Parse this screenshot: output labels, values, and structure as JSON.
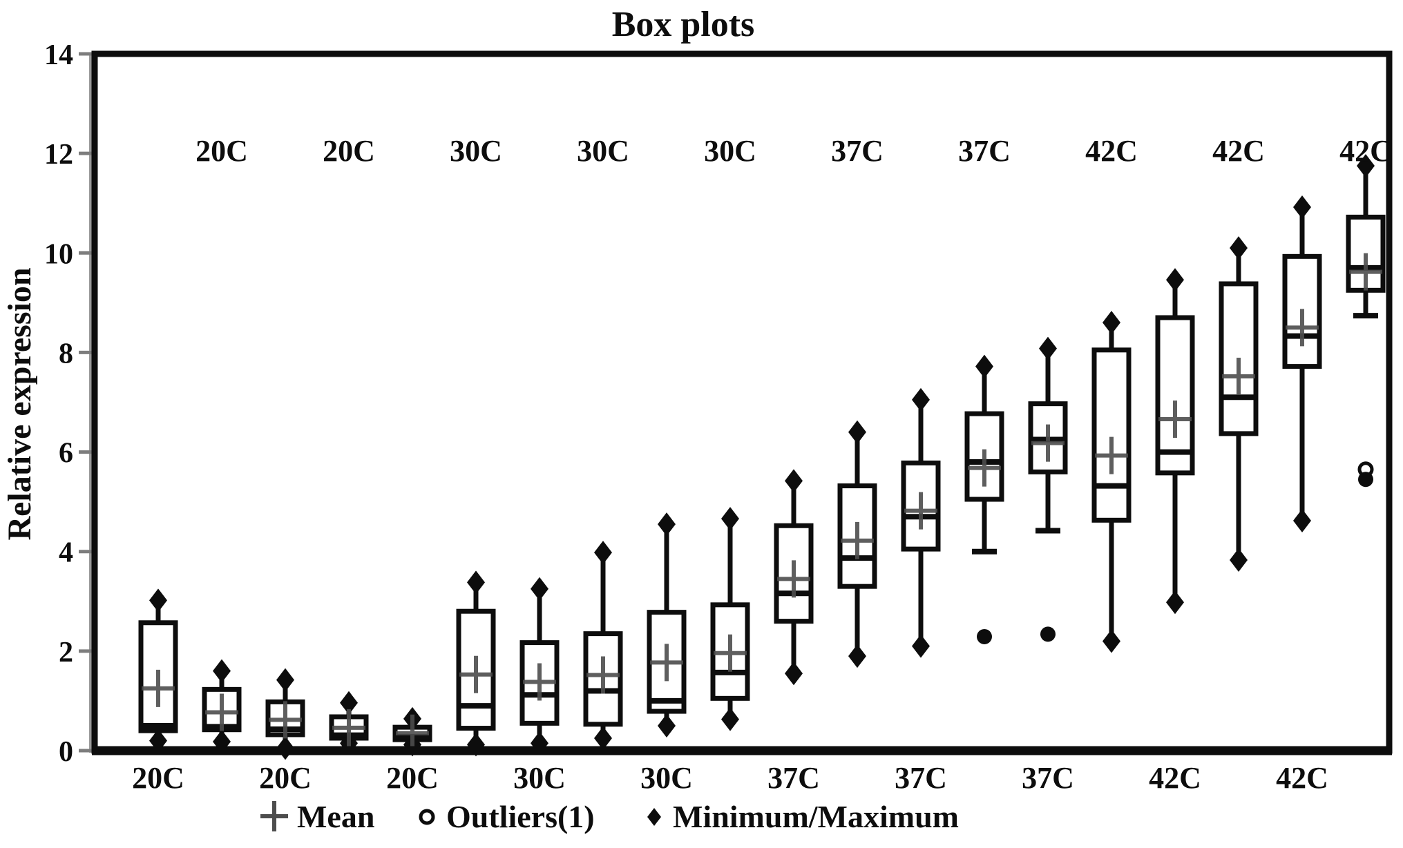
{
  "title": "Box plots",
  "y_axis": {
    "label": "Relative expression",
    "ticks": [
      0,
      2,
      4,
      6,
      8,
      10,
      12,
      14
    ],
    "min": 0,
    "max": 14
  },
  "legend": {
    "mean_label": "Mean",
    "outliers_label": "Outliers(1)",
    "minmax_label": "Minimum/Maximum"
  },
  "colors": {
    "box_stroke": "#0d0d0d",
    "mean_plus": "#4d4d4d",
    "tick_gray": "#7d7d7d",
    "background": "#ffffff"
  },
  "chart_data": {
    "type": "boxplot",
    "title": "Box plots",
    "ylabel": "Relative expression",
    "ylim": [
      0,
      14
    ],
    "grid": false,
    "legend_position": "bottom",
    "groups": [
      "20C",
      "30C",
      "37C",
      "42C"
    ],
    "boxes": [
      {
        "label": "20C",
        "label_position": "bottom",
        "whisker_low": 0.2,
        "lower_marker": "diamond",
        "q1": 0.4,
        "median": 0.5,
        "mean": 1.25,
        "q3": 2.57,
        "max": 3.02,
        "outliers": []
      },
      {
        "label": "20C",
        "label_position": "top",
        "whisker_low": 0.18,
        "lower_marker": "diamond",
        "q1": 0.42,
        "median": 0.48,
        "mean": 0.77,
        "q3": 1.23,
        "max": 1.6,
        "outliers": []
      },
      {
        "label": "20C",
        "label_position": "bottom",
        "whisker_low": 0.05,
        "lower_marker": "diamond",
        "q1": 0.32,
        "median": 0.43,
        "mean": 0.62,
        "q3": 0.98,
        "max": 1.42,
        "outliers": []
      },
      {
        "label": "20C",
        "label_position": "top",
        "whisker_low": 0.15,
        "lower_marker": "diamond",
        "q1": 0.25,
        "median": 0.31,
        "mean": 0.46,
        "q3": 0.68,
        "max": 0.96,
        "outliers": []
      },
      {
        "label": "20C",
        "label_position": "bottom",
        "whisker_low": 0.12,
        "lower_marker": "diamond",
        "q1": 0.22,
        "median": 0.28,
        "mean": 0.35,
        "q3": 0.47,
        "max": 0.64,
        "outliers": []
      },
      {
        "label": "30C",
        "label_position": "top",
        "whisker_low": 0.12,
        "lower_marker": "diamond",
        "q1": 0.45,
        "median": 0.9,
        "mean": 1.53,
        "q3": 2.8,
        "max": 3.38,
        "outliers": []
      },
      {
        "label": "30C",
        "label_position": "bottom",
        "whisker_low": 0.15,
        "lower_marker": "diamond",
        "q1": 0.55,
        "median": 1.12,
        "mean": 1.38,
        "q3": 2.17,
        "max": 3.25,
        "outliers": []
      },
      {
        "label": "30C",
        "label_position": "top",
        "whisker_low": 0.25,
        "lower_marker": "diamond",
        "q1": 0.53,
        "median": 1.2,
        "mean": 1.52,
        "q3": 2.35,
        "max": 3.98,
        "outliers": []
      },
      {
        "label": "30C",
        "label_position": "bottom",
        "whisker_low": 0.5,
        "lower_marker": "diamond",
        "q1": 0.79,
        "median": 1.0,
        "mean": 1.77,
        "q3": 2.78,
        "max": 4.55,
        "outliers": []
      },
      {
        "label": "30C",
        "label_position": "top",
        "whisker_low": 0.63,
        "lower_marker": "diamond",
        "q1": 1.05,
        "median": 1.57,
        "mean": 1.96,
        "q3": 2.93,
        "max": 4.66,
        "outliers": []
      },
      {
        "label": "37C",
        "label_position": "bottom",
        "whisker_low": 1.55,
        "lower_marker": "diamond",
        "q1": 2.6,
        "median": 3.16,
        "mean": 3.45,
        "q3": 4.52,
        "max": 5.42,
        "outliers": []
      },
      {
        "label": "37C",
        "label_position": "top",
        "whisker_low": 1.9,
        "lower_marker": "diamond",
        "q1": 3.3,
        "median": 3.87,
        "mean": 4.22,
        "q3": 5.32,
        "max": 6.4,
        "outliers": []
      },
      {
        "label": "37C",
        "label_position": "bottom",
        "whisker_low": 2.1,
        "lower_marker": "diamond",
        "q1": 4.05,
        "median": 4.7,
        "mean": 4.82,
        "q3": 5.78,
        "max": 7.05,
        "outliers": []
      },
      {
        "label": "37C",
        "label_position": "top",
        "whisker_low": 4.0,
        "lower_marker": "cap",
        "q1": 5.05,
        "median": 5.8,
        "mean": 5.68,
        "q3": 6.77,
        "max": 7.72,
        "outliers": [
          {
            "value": 2.29,
            "style": "filled"
          }
        ]
      },
      {
        "label": "37C",
        "label_position": "bottom",
        "whisker_low": 4.42,
        "lower_marker": "cap",
        "q1": 5.6,
        "median": 6.25,
        "mean": 6.18,
        "q3": 6.97,
        "max": 8.08,
        "outliers": [
          {
            "value": 2.34,
            "style": "filled"
          }
        ]
      },
      {
        "label": "42C",
        "label_position": "top",
        "whisker_low": 2.2,
        "lower_marker": "diamond",
        "q1": 4.63,
        "median": 5.32,
        "mean": 5.93,
        "q3": 8.05,
        "max": 8.6,
        "outliers": []
      },
      {
        "label": "42C",
        "label_position": "bottom",
        "whisker_low": 2.98,
        "lower_marker": "diamond",
        "q1": 5.58,
        "median": 6.0,
        "mean": 6.66,
        "q3": 8.7,
        "max": 9.46,
        "outliers": []
      },
      {
        "label": "42C",
        "label_position": "top",
        "whisker_low": 3.83,
        "lower_marker": "diamond",
        "q1": 6.37,
        "median": 7.1,
        "mean": 7.52,
        "q3": 9.38,
        "max": 10.1,
        "outliers": []
      },
      {
        "label": "42C",
        "label_position": "bottom",
        "whisker_low": 4.62,
        "lower_marker": "diamond",
        "q1": 7.72,
        "median": 8.33,
        "mean": 8.5,
        "q3": 9.93,
        "max": 10.92,
        "outliers": []
      },
      {
        "label": "42C",
        "label_position": "top",
        "whisker_low": 8.74,
        "lower_marker": "cap",
        "q1": 9.25,
        "median": 9.7,
        "mean": 9.62,
        "q3": 10.72,
        "max": 11.75,
        "outliers": [
          {
            "value": 5.65,
            "style": "open"
          },
          {
            "value": 5.45,
            "style": "filled"
          }
        ]
      }
    ]
  }
}
